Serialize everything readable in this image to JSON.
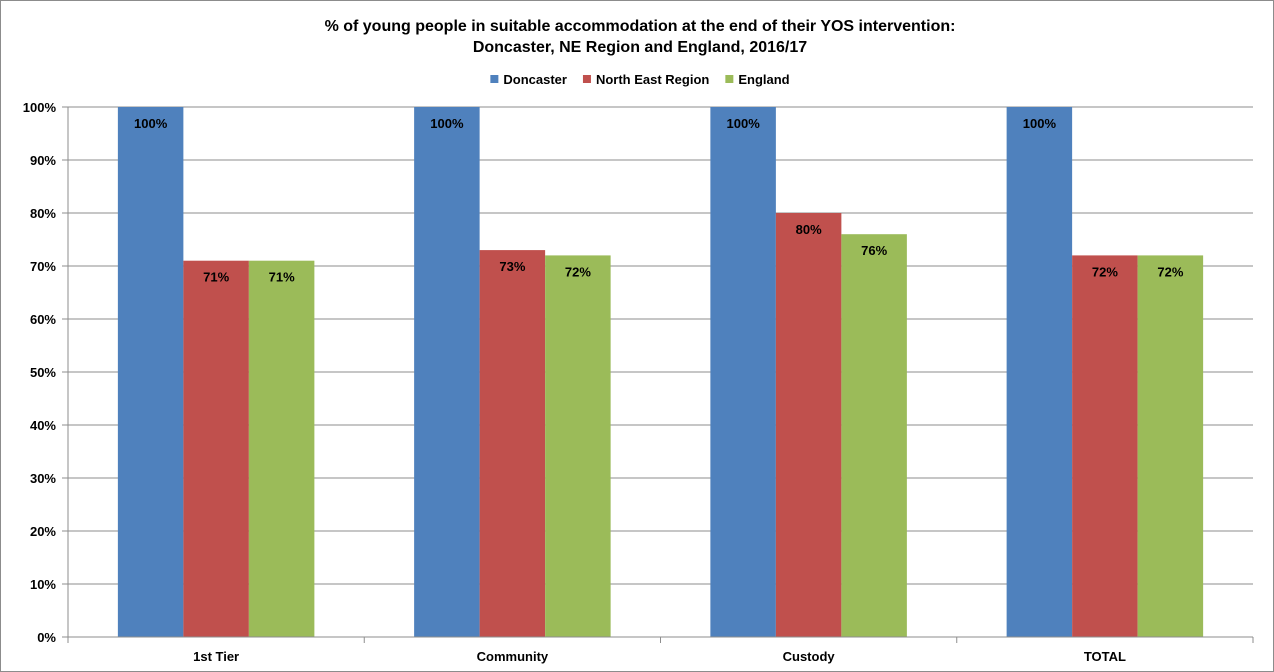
{
  "chart_data": {
    "type": "bar",
    "title": "% of young people in suitable accommodation  at the end of their YOS intervention:",
    "subtitle": "Doncaster, NE Region and England,  2016/17",
    "categories": [
      "1st Tier",
      "Community",
      "Custody",
      "TOTAL"
    ],
    "series": [
      {
        "name": "Doncaster",
        "color": "#4f81bd",
        "values": [
          100,
          100,
          100,
          100
        ],
        "labels": [
          "100%",
          "100%",
          "100%",
          "100%"
        ]
      },
      {
        "name": "North East Region",
        "color": "#c0504d",
        "values": [
          71,
          73,
          80,
          72
        ],
        "labels": [
          "71%",
          "73%",
          "80%",
          "72%"
        ]
      },
      {
        "name": "England",
        "color": "#9bbb59",
        "values": [
          71,
          72,
          76,
          72
        ],
        "labels": [
          "71%",
          "72%",
          "76%",
          "72%"
        ]
      }
    ],
    "ylim": [
      0,
      100
    ],
    "yticks": [
      "0%",
      "10%",
      "20%",
      "30%",
      "40%",
      "50%",
      "60%",
      "70%",
      "80%",
      "90%",
      "100%"
    ],
    "grid": true,
    "legend_position": "top"
  }
}
